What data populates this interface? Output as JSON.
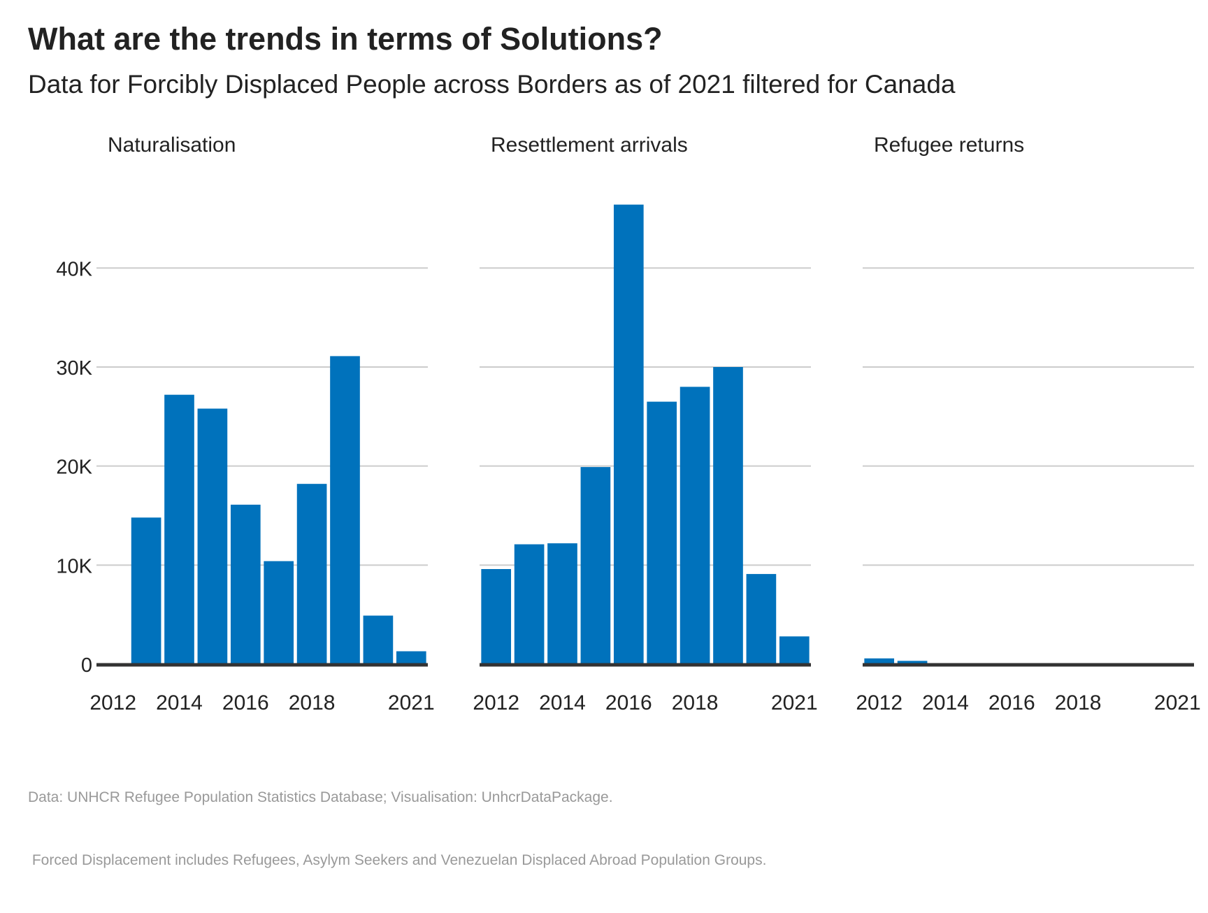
{
  "chart_data": {
    "type": "bar",
    "title": "What are the trends in terms of Solutions?",
    "subtitle": "Data for Forcibly Displaced People across Borders as of 2021 filtered for Canada",
    "caption": [
      "Data: UNHCR Refugee Population Statistics Database; Visualisation: UnhcrDataPackage.",
      " Forced Displacement includes Refugees, Asylym Seekers and Venezuelan Displaced Abroad Population Groups."
    ],
    "x": [
      2012,
      2013,
      2014,
      2015,
      2016,
      2017,
      2018,
      2019,
      2020,
      2021
    ],
    "x_tick_labels": [
      "2012",
      "2014",
      "2016",
      "2018",
      "2021"
    ],
    "x_tick_values": [
      2012,
      2014,
      2016,
      2018,
      2021
    ],
    "y_tick_labels": [
      "0",
      "10K",
      "20K",
      "30K",
      "40K"
    ],
    "y_tick_values": [
      0,
      10000,
      20000,
      30000,
      40000
    ],
    "ylim": [
      0,
      48000
    ],
    "grid": "horizontal",
    "bar_color": "#0072BC",
    "panels": [
      {
        "name": "Naturalisation",
        "values": [
          0,
          14800,
          27200,
          25800,
          16100,
          10400,
          18200,
          31100,
          4900,
          1300
        ]
      },
      {
        "name": "Resettlement arrivals",
        "values": [
          9600,
          12100,
          12200,
          19900,
          46400,
          26500,
          28000,
          30000,
          9100,
          2800
        ]
      },
      {
        "name": "Refugee returns",
        "values": [
          580,
          330,
          60,
          40,
          30,
          30,
          20,
          20,
          10,
          10
        ]
      }
    ]
  }
}
